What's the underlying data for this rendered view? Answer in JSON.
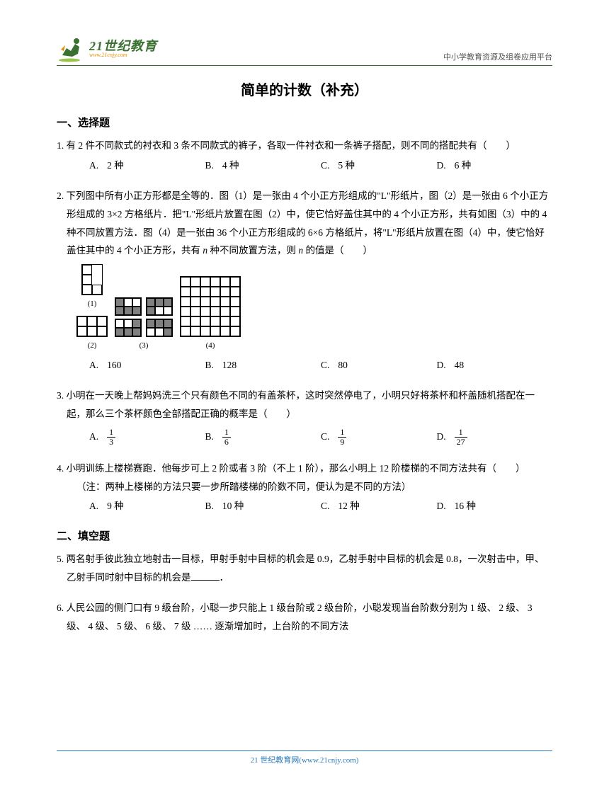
{
  "header": {
    "logo_top": "21世纪教育",
    "logo_bottom": "www.21cnjy.com",
    "right_text": "中小学教育资源及组卷应用平台"
  },
  "title": "简单的计数（补充）",
  "section1_title": "一、选择题",
  "section2_title": "二、填空题",
  "q1": {
    "num": "1.",
    "text": "有 2 件不同款式的衬衣和 3 条不同款式的裤子，各取一件衬衣和一条裤子搭配，则不同的搭配共有（　　）",
    "opts": {
      "A": "2 种",
      "B": "4 种",
      "C": "5 种",
      "D": "6 种"
    }
  },
  "q2": {
    "num": "2.",
    "text1": "下列图中所有小正方形都是全等的．图（1）是一张由 4 个小正方形组成的\"L\"形纸片，图（2）是一张由 6 个小正方形组成的 3×2 方格纸片．把\"L\"形纸片放置在图（2）中，使它恰好盖住其中的 4 个小正方形，共有如图（3）中的 4 种不同放置方法．图（4）是一张由 36 个小正方形组成的 6×6 方格纸片，将\"L\"形纸片放置在图（4）中，使它恰好盖住其中的 4 个小正方形，共有 ",
    "var1": "n",
    "text2": " 种不同放置方法，则 ",
    "var2": "n",
    "text3": " 的值是（　　）",
    "labels": [
      "(1)",
      "(2)",
      "(3)",
      "(4)"
    ],
    "opts": {
      "A": "160",
      "B": "128",
      "C": "80",
      "D": "48"
    }
  },
  "q3": {
    "num": "3.",
    "text": "小明在一天晚上帮妈妈洗三个只有颜色不同的有盖茶杯，这时突然停电了，小明只好将茶杯和杯盖随机搭配在一起，那么三个茶杯颜色全部搭配正确的概率是（　　）",
    "opts": {
      "A": {
        "num": "1",
        "den": "3"
      },
      "B": {
        "num": "1",
        "den": "6"
      },
      "C": {
        "num": "1",
        "den": "9"
      },
      "D": {
        "num": "1",
        "den": "27"
      }
    }
  },
  "q4": {
    "num": "4.",
    "text": "小明训练上楼梯赛跑．他每步可上 2 阶或者 3 阶（不上 1 阶），那么小明上 12 阶楼梯的不同方法共有（　　）",
    "note": "（注：两种上楼梯的方法只要一步所踏楼梯的阶数不同，便认为是不同的方法）",
    "opts": {
      "A": "9 种",
      "B": "10 种",
      "C": "12 种",
      "D": "16 种"
    }
  },
  "q5": {
    "num": "5.",
    "text1": "两名射手彼此独立地射击一目标，甲射手射中目标的机会是 0.9，乙射手射中目标的机会是 0.8，一次射击中，甲、乙射手同时射中目标的机会是",
    "text2": "．"
  },
  "q6": {
    "num": "6.",
    "text": "人民公园的侧门口有 9 级台阶，小聪一步只能上 1 级台阶或 2 级台阶，小聪发现当台阶数分别为 1 级、 2 级、 3 级、 4 级、 5 级、 6 级、 7 级 …… 逐渐增加时，上台阶的不同方法"
  },
  "footer": "21 世纪教育网(www.21cnjy.com)",
  "opt_labels": {
    "A": "A.",
    "B": "B.",
    "C": "C.",
    "D": "D."
  }
}
